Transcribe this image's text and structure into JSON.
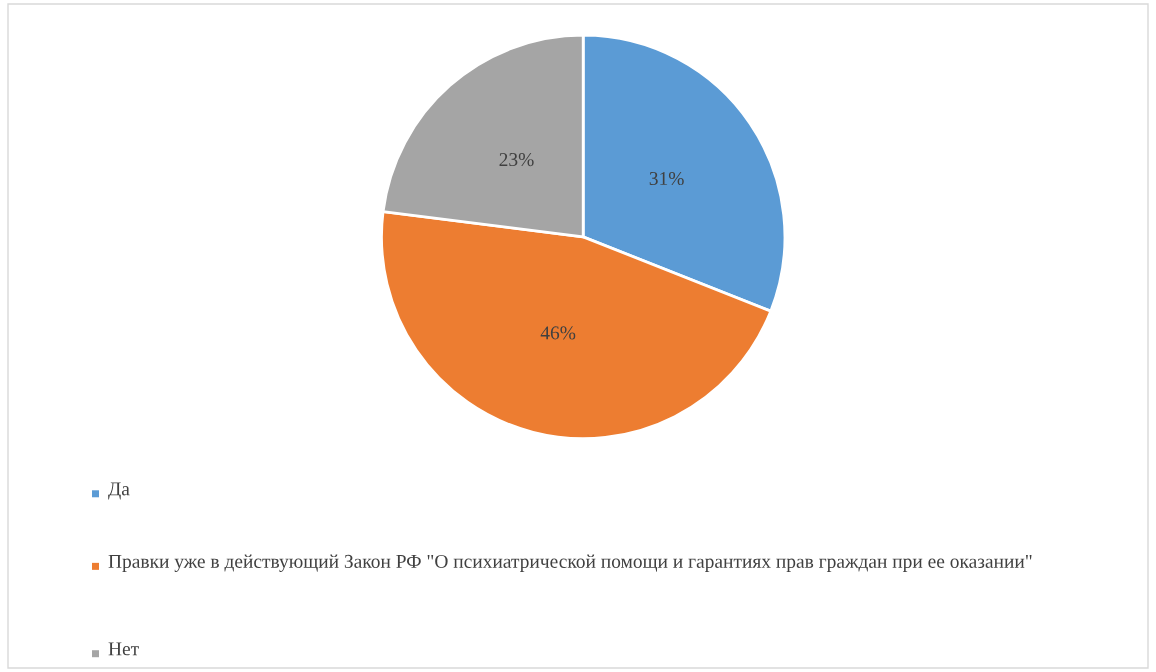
{
  "chart_data": {
    "type": "pie",
    "categories": [
      "Да",
      "Правки уже в действующий Закон РФ \"О психиатрической помощи и гарантиях прав граждан при ее оказании\"",
      "Нет"
    ],
    "values": [
      31,
      46,
      23
    ],
    "colors": [
      "#5b9bd5",
      "#ed7d31",
      "#a5a5a5"
    ],
    "value_labels": [
      "31%",
      "46%",
      "23%"
    ],
    "legend": "bottom"
  }
}
